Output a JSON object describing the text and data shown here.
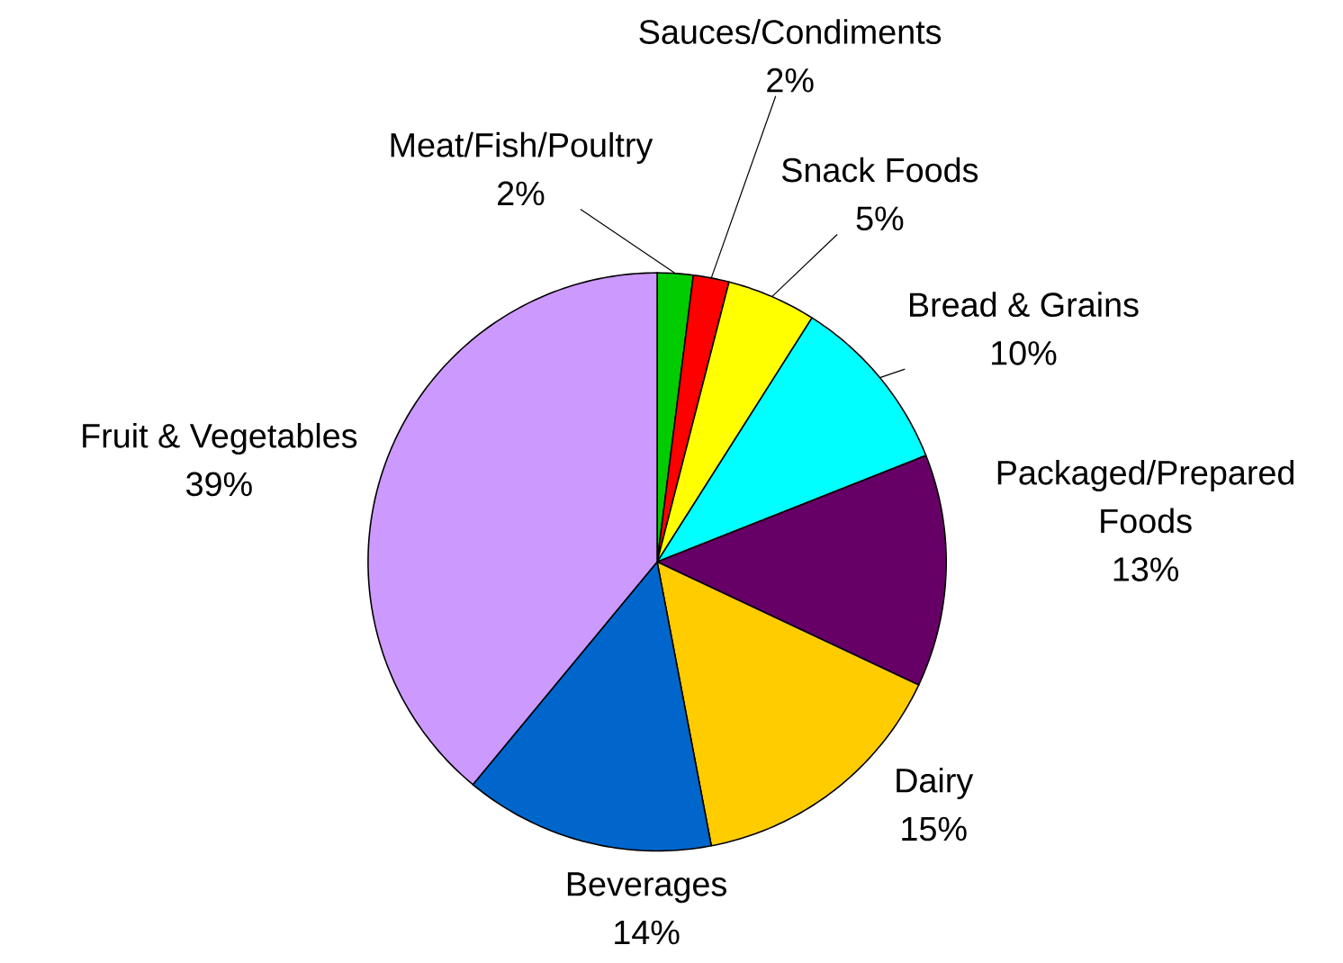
{
  "chart_data": {
    "type": "pie",
    "categories": [
      "Meat/Fish/Poultry",
      "Sauces/Condiments",
      "Snack Foods",
      "Bread & Grains",
      "Packaged/Prepared Foods",
      "Dairy",
      "Beverages",
      "Fruit & Vegetables"
    ],
    "values": [
      2,
      2,
      5,
      10,
      13,
      15,
      14,
      39
    ],
    "value_labels": [
      "2%",
      "2%",
      "5%",
      "10%",
      "13%",
      "15%",
      "14%",
      "39%"
    ],
    "colors": [
      "#00cc00",
      "#ff0000",
      "#ffff00",
      "#00ffff",
      "#660066",
      "#ffcc00",
      "#0066cc",
      "#cc99ff"
    ]
  }
}
